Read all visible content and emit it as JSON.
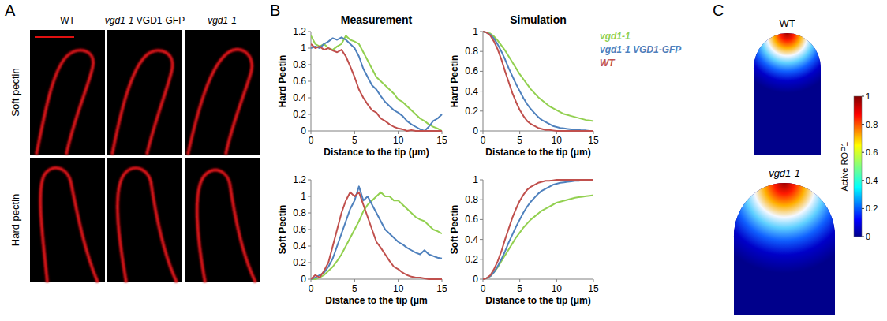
{
  "panel_labels": [
    "A",
    "B",
    "C"
  ],
  "panel_a": {
    "columns": [
      "WT",
      "vgd1-1 VGD1-GFP",
      "vgd1-1"
    ],
    "rows": [
      "Soft pectin",
      "Hard pectin"
    ]
  },
  "chart_data": [
    {
      "type": "line",
      "title": "Measurement",
      "x_label": "Distance to the tip (μm)",
      "y_label": "Hard Pectin",
      "grid": false,
      "x": [
        0,
        0.5,
        1,
        1.5,
        2,
        2.5,
        3,
        3.5,
        4,
        4.5,
        5,
        5.5,
        6,
        6.5,
        7,
        7.5,
        8,
        8.5,
        9,
        9.5,
        10,
        10.5,
        11,
        11.5,
        12,
        12.5,
        13,
        13.5,
        14,
        14.5,
        15
      ],
      "xlim": [
        0,
        15
      ],
      "xticks": [
        0,
        5,
        10,
        15
      ],
      "ylim": [
        0,
        1.2
      ],
      "yticks": [
        0,
        0.2,
        0.4,
        0.6,
        0.8,
        1,
        1.2
      ],
      "series": [
        {
          "color": "#92d050",
          "values": [
            1.15,
            1.05,
            1.02,
            1.05,
            1.0,
            0.98,
            1.02,
            1.05,
            1.15,
            1.1,
            1.08,
            1.05,
            0.95,
            0.85,
            0.75,
            0.65,
            0.6,
            0.55,
            0.5,
            0.45,
            0.38,
            0.35,
            0.3,
            0.25,
            0.2,
            0.15,
            0.12,
            0.08,
            0.05,
            0.03,
            0.0
          ]
        },
        {
          "color": "#4f81bd",
          "values": [
            1.0,
            1.02,
            1.0,
            1.05,
            1.08,
            1.12,
            1.1,
            1.13,
            1.1,
            1.05,
            1.0,
            0.9,
            0.75,
            0.65,
            0.55,
            0.5,
            0.42,
            0.35,
            0.3,
            0.25,
            0.22,
            0.18,
            0.12,
            0.08,
            0.05,
            0.02,
            0.0,
            0.05,
            0.12,
            0.15,
            0.2
          ]
        },
        {
          "color": "#c0504d",
          "values": [
            1.05,
            1.0,
            1.02,
            0.98,
            1.0,
            0.97,
            0.95,
            0.98,
            0.9,
            0.78,
            0.65,
            0.5,
            0.4,
            0.32,
            0.25,
            0.22,
            0.15,
            0.12,
            0.08,
            0.05,
            0.03,
            0.02,
            0.0,
            0.01,
            0,
            0,
            0,
            0,
            0,
            0,
            0
          ]
        }
      ]
    },
    {
      "type": "line",
      "title": "Simulation",
      "x_label": "Distance to the tip (μm)",
      "y_label": "Hard Pectin",
      "grid": false,
      "legend": "right",
      "x": [
        0,
        0.5,
        1,
        1.5,
        2,
        2.5,
        3,
        3.5,
        4,
        4.5,
        5,
        5.5,
        6,
        6.5,
        7,
        7.5,
        8,
        8.5,
        9,
        9.5,
        10,
        10.5,
        11,
        11.5,
        12,
        12.5,
        13,
        13.5,
        14,
        14.5,
        15
      ],
      "xlim": [
        0,
        15
      ],
      "xticks": [
        0,
        5,
        10,
        15
      ],
      "ylim": [
        0,
        1
      ],
      "yticks": [
        0,
        0.2,
        0.4,
        0.6,
        0.8,
        1
      ],
      "series": [
        {
          "name": "vgd1-1",
          "color": "#92d050",
          "values": [
            1,
            0.99,
            0.98,
            0.95,
            0.91,
            0.86,
            0.81,
            0.75,
            0.69,
            0.63,
            0.57,
            0.52,
            0.47,
            0.42,
            0.38,
            0.34,
            0.31,
            0.28,
            0.25,
            0.23,
            0.21,
            0.19,
            0.17,
            0.16,
            0.15,
            0.14,
            0.13,
            0.12,
            0.11,
            0.105,
            0.1
          ]
        },
        {
          "name": "vgd1-1 VGD1-GFP",
          "color": "#4f81bd",
          "values": [
            1,
            0.99,
            0.97,
            0.93,
            0.87,
            0.8,
            0.72,
            0.63,
            0.55,
            0.47,
            0.4,
            0.33,
            0.27,
            0.22,
            0.18,
            0.14,
            0.11,
            0.09,
            0.07,
            0.05,
            0.04,
            0.03,
            0.025,
            0.02,
            0.015,
            0.01,
            0.01,
            0.005,
            0.005,
            0,
            0
          ]
        },
        {
          "name": "WT",
          "color": "#c0504d",
          "values": [
            1,
            0.99,
            0.96,
            0.9,
            0.82,
            0.72,
            0.6,
            0.49,
            0.38,
            0.29,
            0.21,
            0.15,
            0.1,
            0.07,
            0.05,
            0.03,
            0.02,
            0.01,
            0.01,
            0.005,
            0,
            0,
            0,
            0,
            0,
            0,
            0,
            0,
            0,
            0,
            0
          ]
        }
      ]
    },
    {
      "type": "line",
      "x_label": "Distance to the tip (μm",
      "y_label": "Soft Pectin",
      "grid": false,
      "x": [
        0,
        0.5,
        1,
        1.5,
        2,
        2.5,
        3,
        3.5,
        4,
        4.5,
        5,
        5.5,
        6,
        6.5,
        7,
        7.5,
        8,
        8.5,
        9,
        9.5,
        10,
        10.5,
        11,
        11.5,
        12,
        12.5,
        13,
        13.5,
        14,
        14.5,
        15
      ],
      "xlim": [
        0,
        15
      ],
      "xticks": [
        0,
        5,
        10,
        15
      ],
      "ylim": [
        0,
        1.2
      ],
      "yticks": [
        0,
        0.2,
        0.4,
        0.6,
        0.8,
        1,
        1.2
      ],
      "series": [
        {
          "color": "#92d050",
          "values": [
            0,
            0,
            0.02,
            0.05,
            0.1,
            0.15,
            0.22,
            0.3,
            0.4,
            0.5,
            0.6,
            0.7,
            0.82,
            0.9,
            0.95,
            1.0,
            1.05,
            1.0,
            1.0,
            0.95,
            0.95,
            0.9,
            0.85,
            0.8,
            0.75,
            0.72,
            0.7,
            0.65,
            0.6,
            0.58,
            0.55
          ]
        },
        {
          "color": "#4f81bd",
          "values": [
            0,
            0.02,
            0.05,
            0.08,
            0.15,
            0.25,
            0.4,
            0.55,
            0.7,
            0.85,
            0.95,
            1.12,
            0.95,
            1.0,
            0.9,
            0.8,
            0.7,
            0.6,
            0.55,
            0.5,
            0.45,
            0.42,
            0.38,
            0.35,
            0.32,
            0.3,
            0.35,
            0.3,
            0.28,
            0.26,
            0.25
          ]
        },
        {
          "color": "#c0504d",
          "values": [
            0,
            0.05,
            0.02,
            0.1,
            0.2,
            0.4,
            0.6,
            0.8,
            0.95,
            1.05,
            1.0,
            1.05,
            0.9,
            0.75,
            0.6,
            0.45,
            0.38,
            0.3,
            0.22,
            0.15,
            0.12,
            0.08,
            0.05,
            0.03,
            0.02,
            0.02,
            0.01,
            0,
            0,
            0,
            0
          ]
        }
      ]
    },
    {
      "type": "line",
      "x_label": "Distance to the tip (μm)",
      "y_label": "Soft Pectin",
      "grid": false,
      "x": [
        0,
        0.5,
        1,
        1.5,
        2,
        2.5,
        3,
        3.5,
        4,
        4.5,
        5,
        5.5,
        6,
        6.5,
        7,
        7.5,
        8,
        8.5,
        9,
        9.5,
        10,
        10.5,
        11,
        11.5,
        12,
        12.5,
        13,
        13.5,
        14,
        14.5,
        15
      ],
      "xlim": [
        0,
        15
      ],
      "xticks": [
        0,
        5,
        10,
        15
      ],
      "ylim": [
        0,
        1
      ],
      "yticks": [
        0,
        0.2,
        0.4,
        0.6,
        0.8,
        1
      ],
      "series": [
        {
          "color": "#92d050",
          "values": [
            0,
            0.01,
            0.03,
            0.07,
            0.12,
            0.18,
            0.24,
            0.3,
            0.36,
            0.42,
            0.47,
            0.52,
            0.56,
            0.6,
            0.63,
            0.66,
            0.69,
            0.71,
            0.73,
            0.75,
            0.77,
            0.78,
            0.79,
            0.8,
            0.81,
            0.82,
            0.825,
            0.83,
            0.835,
            0.84,
            0.845
          ]
        },
        {
          "color": "#4f81bd",
          "values": [
            0,
            0.01,
            0.03,
            0.07,
            0.13,
            0.2,
            0.28,
            0.37,
            0.45,
            0.53,
            0.6,
            0.67,
            0.73,
            0.78,
            0.82,
            0.86,
            0.89,
            0.91,
            0.93,
            0.95,
            0.96,
            0.97,
            0.975,
            0.98,
            0.985,
            0.99,
            0.99,
            0.995,
            0.995,
            1,
            1
          ]
        },
        {
          "color": "#c0504d",
          "values": [
            0,
            0.01,
            0.04,
            0.1,
            0.18,
            0.28,
            0.4,
            0.51,
            0.62,
            0.71,
            0.79,
            0.85,
            0.9,
            0.93,
            0.95,
            0.97,
            0.98,
            0.99,
            0.99,
            0.995,
            1,
            1,
            1,
            1,
            1,
            1,
            1,
            1,
            1,
            1,
            1
          ]
        }
      ]
    }
  ],
  "panel_c": {
    "titles": [
      "WT",
      "vgd1-1"
    ],
    "colorbar": {
      "label": "Active ROP1",
      "range": [
        0,
        1
      ],
      "ticks": [
        0,
        0.2,
        0.4,
        0.6,
        0.8,
        1
      ]
    }
  }
}
